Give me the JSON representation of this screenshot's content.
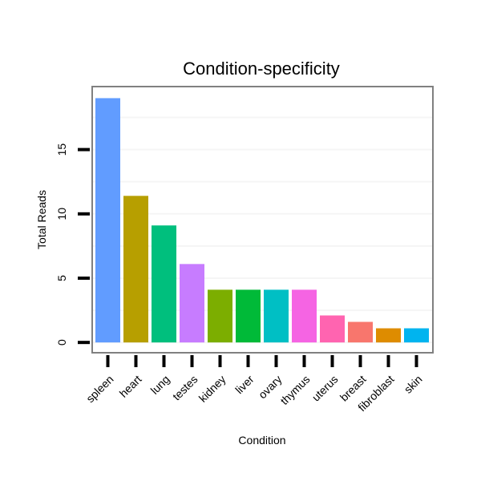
{
  "chart_data": {
    "type": "bar",
    "title": "Condition-specificity",
    "xlabel": "Condition",
    "ylabel": "Total Reads",
    "categories": [
      "spleen",
      "heart",
      "lung",
      "testes",
      "kidney",
      "liver",
      "ovary",
      "thymus",
      "uterus",
      "breast",
      "fibroblast",
      "skin"
    ],
    "values": [
      19,
      11.4,
      9.1,
      6.1,
      4.1,
      4.1,
      4.1,
      4.1,
      2.1,
      1.6,
      1.1,
      1.1
    ],
    "colors": [
      "#619CFF",
      "#B79F00",
      "#00BF7D",
      "#C77CFF",
      "#7CAE00",
      "#00BA38",
      "#00BFC4",
      "#F564E3",
      "#FF64B0",
      "#F8766D",
      "#DE8C00",
      "#00B4EF"
    ],
    "yticks": [
      0,
      5,
      10,
      15
    ],
    "ytick_labels": [
      "0",
      "5",
      "10",
      "15"
    ],
    "ylim": [
      -0.8,
      19.9
    ],
    "grid": true,
    "panel_border_color": "#808080",
    "grid_color": "#F5F5F5"
  }
}
